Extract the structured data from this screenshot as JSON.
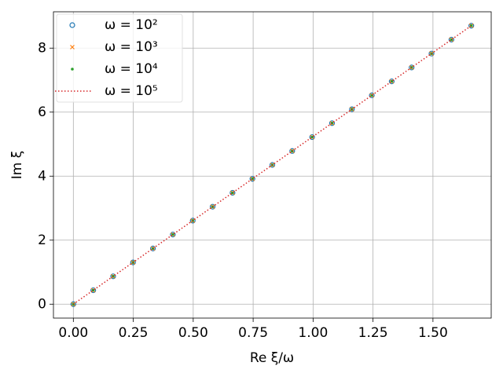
{
  "chart_data": {
    "type": "scatter",
    "xlabel": "Re ξ/ω",
    "ylabel": "Im ξ",
    "x": [
      0,
      0.083,
      0.166,
      0.249,
      0.332,
      0.415,
      0.498,
      0.581,
      0.664,
      0.747,
      0.83,
      0.913,
      0.996,
      1.079,
      1.162,
      1.245,
      1.328,
      1.411,
      1.494,
      1.577,
      1.66
    ],
    "series": [
      {
        "name": "ω = 10²",
        "color": "#1f77b4",
        "marker": "o",
        "values": [
          0,
          0.435,
          0.87,
          1.305,
          1.74,
          2.175,
          2.61,
          3.045,
          3.48,
          3.915,
          4.35,
          4.785,
          5.22,
          5.655,
          6.09,
          6.525,
          6.96,
          7.395,
          7.83,
          8.265,
          8.7
        ]
      },
      {
        "name": "ω = 10³",
        "color": "#ff7f0e",
        "marker": "x",
        "values": [
          0,
          0.435,
          0.87,
          1.305,
          1.74,
          2.175,
          2.61,
          3.045,
          3.48,
          3.915,
          4.35,
          4.785,
          5.22,
          5.655,
          6.09,
          6.525,
          6.96,
          7.395,
          7.83,
          8.265,
          8.7
        ]
      },
      {
        "name": "ω = 10⁴",
        "color": "#2ca02c",
        "marker": ".",
        "values": [
          0,
          0.435,
          0.87,
          1.305,
          1.74,
          2.175,
          2.61,
          3.045,
          3.48,
          3.915,
          4.35,
          4.785,
          5.22,
          5.655,
          6.09,
          6.525,
          6.96,
          7.395,
          7.83,
          8.265,
          8.7
        ]
      },
      {
        "name": "ω = 10⁵",
        "color": "#d62728",
        "linestyle": "dotted",
        "values": [
          0,
          0.435,
          0.87,
          1.305,
          1.74,
          2.175,
          2.61,
          3.045,
          3.48,
          3.915,
          4.35,
          4.785,
          5.22,
          5.655,
          6.09,
          6.525,
          6.96,
          7.395,
          7.83,
          8.265,
          8.7
        ]
      }
    ],
    "xlim": [
      -0.083,
      1.743
    ],
    "ylim": [
      -0.435,
      9.135
    ],
    "xticks": [
      {
        "value": 0,
        "label": "0.00"
      },
      0.25,
      {
        "value": 0.5,
        "label": "0.50"
      },
      0.75,
      {
        "value": 1,
        "label": "1.00"
      },
      1.25,
      {
        "value": 1.5,
        "label": "1.50"
      }
    ],
    "yticks": [
      0,
      2,
      4,
      6,
      8
    ],
    "grid": true,
    "legend": "upper left"
  }
}
